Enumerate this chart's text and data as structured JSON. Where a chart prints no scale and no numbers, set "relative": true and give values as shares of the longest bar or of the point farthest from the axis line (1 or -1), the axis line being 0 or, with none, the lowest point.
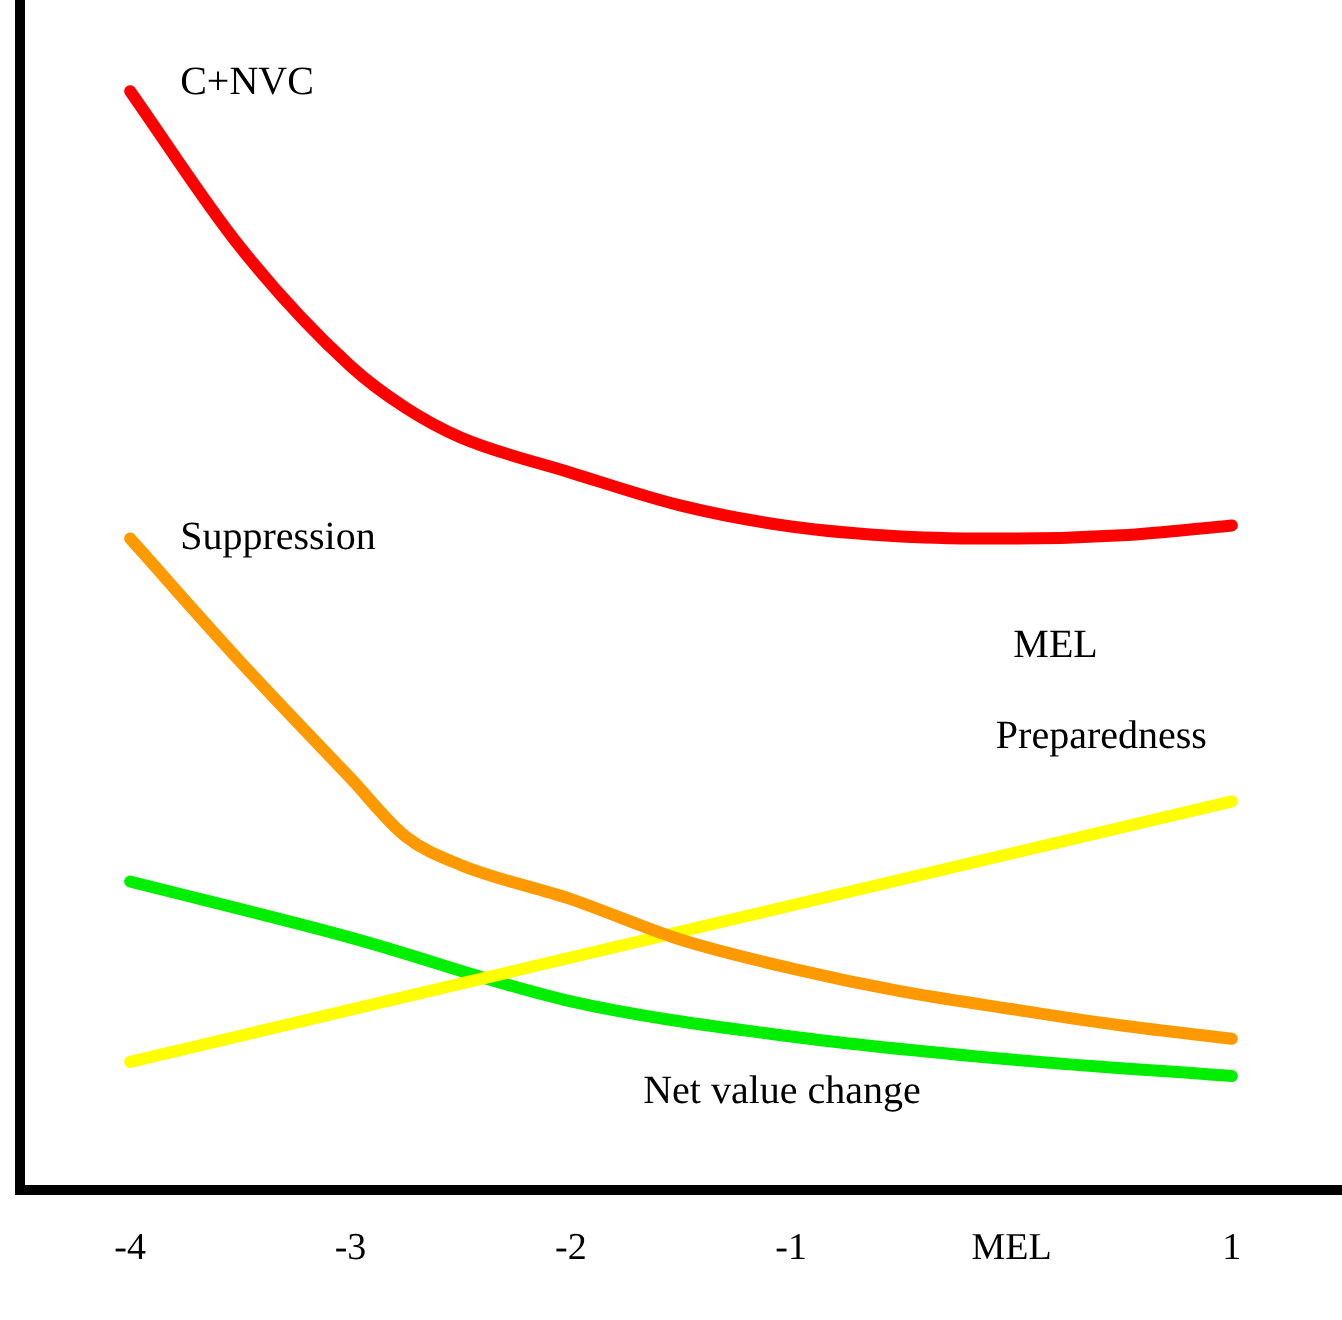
{
  "chart_data": {
    "type": "line",
    "relative": true,
    "xlim": [
      -4.5,
      1.5
    ],
    "xticks": [
      -4,
      -3,
      -2,
      -1,
      {
        "value": 0,
        "label": "MEL"
      },
      1
    ],
    "grid": false,
    "legend": false,
    "marker": "none",
    "annotations": [
      "MEL"
    ],
    "series": [
      {
        "name": "C+NVC",
        "color": "#ff0000",
        "x": [
          -4,
          -3.5,
          -3,
          -2.75,
          -2.5,
          -2,
          -1.5,
          -1,
          -0.5,
          0,
          0.5,
          1
        ],
        "values": [
          1,
          0.858,
          0.75,
          0.712,
          0.685,
          0.653,
          0.623,
          0.604,
          0.595,
          0.593,
          0.596,
          0.605
        ]
      },
      {
        "name": "Suppression",
        "color": "#ff9900",
        "x": [
          -4,
          -3.5,
          -3,
          -2.75,
          -2.5,
          -2,
          -1.5,
          -1,
          -0.5,
          0,
          0.5,
          1
        ],
        "values": [
          0.593,
          0.481,
          0.375,
          0.322,
          0.296,
          0.265,
          0.228,
          0.202,
          0.181,
          0.165,
          0.15,
          0.138
        ]
      },
      {
        "name": "Preparedness",
        "color": "#ffff00",
        "x": [
          -4,
          1
        ],
        "values": [
          0.117,
          0.354
        ]
      },
      {
        "name": "Net value change",
        "color": "#00ee00",
        "x": [
          -4,
          -3,
          -2,
          -1,
          0,
          1
        ],
        "values": [
          0.281,
          0.23,
          0.172,
          0.14,
          0.119,
          0.104
        ]
      }
    ]
  }
}
